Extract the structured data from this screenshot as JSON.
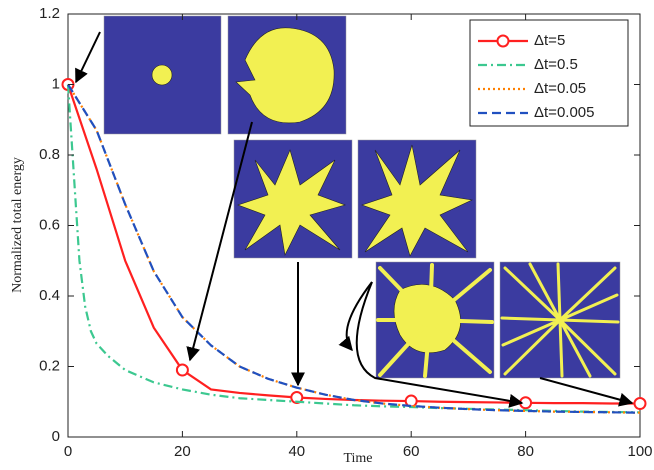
{
  "chart_data": {
    "type": "line",
    "xlabel": "Time",
    "ylabel": "Normalized total energy",
    "x": [
      0,
      5,
      10,
      15,
      20,
      25,
      30,
      35,
      40,
      45,
      50,
      55,
      60,
      65,
      70,
      75,
      80,
      85,
      90,
      95,
      100
    ],
    "series": [
      {
        "name": "Δt=5",
        "color": "#ff2020",
        "dash": "solid",
        "marker": "o",
        "markevery": 4,
        "values": [
          1,
          0.76,
          0.5,
          0.31,
          0.19,
          0.135,
          0.125,
          0.118,
          0.112,
          0.108,
          0.105,
          0.103,
          0.102,
          0.1,
          0.099,
          0.098,
          0.097,
          0.096,
          0.096,
          0.095,
          0.095
        ]
      },
      {
        "name": "Δt=0.5",
        "color": "#3cc890",
        "dash": "dashdot",
        "x": [
          0,
          1,
          2,
          3,
          4,
          5,
          7,
          10,
          15,
          20,
          25,
          30,
          35,
          40,
          45,
          50,
          55,
          60,
          65,
          70,
          75,
          80,
          85,
          90,
          95,
          100
        ],
        "values": [
          1,
          0.75,
          0.5,
          0.37,
          0.3,
          0.265,
          0.23,
          0.19,
          0.155,
          0.135,
          0.12,
          0.11,
          0.105,
          0.1,
          0.095,
          0.09,
          0.087,
          0.085,
          0.082,
          0.08,
          0.078,
          0.076,
          0.074,
          0.072,
          0.071,
          0.07
        ]
      },
      {
        "name": "Δt=0.05",
        "color": "#ff8000",
        "dash": "dotted",
        "values": [
          1,
          0.87,
          0.66,
          0.47,
          0.34,
          0.26,
          0.2,
          0.165,
          0.14,
          0.12,
          0.105,
          0.095,
          0.088,
          0.083,
          0.079,
          0.076,
          0.074,
          0.072,
          0.071,
          0.07,
          0.069
        ]
      },
      {
        "name": "Δt=0.005",
        "color": "#2050c0",
        "dash": "dashed",
        "values": [
          1,
          0.87,
          0.66,
          0.47,
          0.34,
          0.26,
          0.2,
          0.165,
          0.14,
          0.12,
          0.105,
          0.095,
          0.088,
          0.083,
          0.079,
          0.076,
          0.074,
          0.072,
          0.071,
          0.07,
          0.069
        ]
      }
    ],
    "xlim": [
      0,
      100
    ],
    "xticks": [
      0,
      20,
      40,
      60,
      80,
      100
    ],
    "ylim": [
      0,
      1.2
    ],
    "yticks": [
      0,
      0.2,
      0.4,
      0.6,
      0.8,
      1,
      1.2
    ],
    "grid": false,
    "legend": "upper right"
  }
}
